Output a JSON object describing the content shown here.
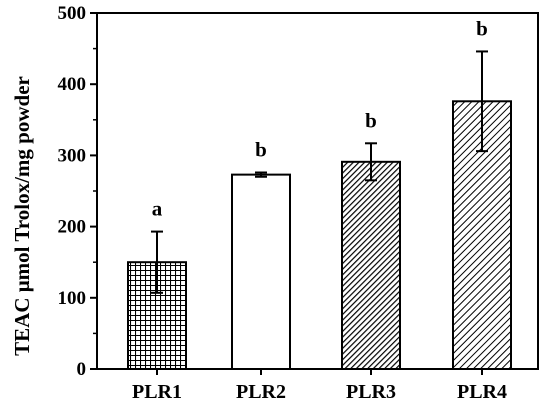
{
  "chart_data": {
    "type": "bar",
    "title": "",
    "xlabel": "",
    "ylabel": "TEAC μmol Trolox/mg powder",
    "ylim": [
      0,
      500
    ],
    "yticks": [
      0,
      100,
      200,
      300,
      400,
      500
    ],
    "categories": [
      "PLR1",
      "PLR2",
      "PLR3",
      "PLR4"
    ],
    "values": [
      150,
      273,
      291,
      376
    ],
    "errors": [
      43,
      3,
      26,
      70
    ],
    "significance": [
      "a",
      "b",
      "b",
      "b"
    ],
    "patterns": [
      "grid",
      "none",
      "diagonal-dense",
      "diagonal"
    ],
    "grid": false,
    "legend": "none"
  }
}
